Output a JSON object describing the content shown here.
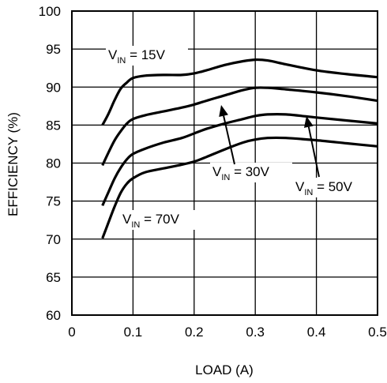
{
  "chart_data": {
    "type": "line",
    "xlabel": "LOAD (A)",
    "ylabel": "EFFICIENCY (%)",
    "xlim": [
      0,
      0.5
    ],
    "ylim": [
      60,
      100
    ],
    "grid": true,
    "x_ticks": [
      "0",
      "0.1",
      "0.2",
      "0.3",
      "0.4",
      "0.5"
    ],
    "y_ticks": [
      "60",
      "65",
      "70",
      "75",
      "80",
      "85",
      "90",
      "95",
      "100"
    ],
    "x_tick_values": [
      0,
      0.1,
      0.2,
      0.3,
      0.4,
      0.5
    ],
    "y_tick_values": [
      60,
      65,
      70,
      75,
      80,
      85,
      90,
      95,
      100
    ],
    "series": [
      {
        "name": "VIN = 15V",
        "x": [
          0.05,
          0.06,
          0.07,
          0.08,
          0.09,
          0.1,
          0.12,
          0.15,
          0.18,
          0.2,
          0.22,
          0.25,
          0.28,
          0.3,
          0.32,
          0.35,
          0.4,
          0.45,
          0.5
        ],
        "y": [
          85.0,
          86.5,
          88.3,
          89.8,
          90.6,
          91.2,
          91.5,
          91.6,
          91.6,
          91.8,
          92.2,
          92.9,
          93.4,
          93.6,
          93.5,
          93.0,
          92.2,
          91.7,
          91.3
        ]
      },
      {
        "name": "VIN = 30V",
        "x": [
          0.05,
          0.06,
          0.07,
          0.08,
          0.09,
          0.1,
          0.12,
          0.15,
          0.18,
          0.2,
          0.22,
          0.25,
          0.28,
          0.3,
          0.32,
          0.35,
          0.4,
          0.45,
          0.5
        ],
        "y": [
          79.7,
          81.4,
          83.0,
          84.2,
          85.2,
          85.8,
          86.3,
          86.8,
          87.3,
          87.7,
          88.2,
          88.9,
          89.6,
          89.9,
          89.9,
          89.7,
          89.3,
          88.8,
          88.2
        ]
      },
      {
        "name": "VIN = 50V",
        "x": [
          0.05,
          0.06,
          0.07,
          0.08,
          0.09,
          0.1,
          0.12,
          0.15,
          0.18,
          0.2,
          0.22,
          0.25,
          0.28,
          0.3,
          0.32,
          0.35,
          0.4,
          0.45,
          0.5
        ],
        "y": [
          74.4,
          76.2,
          78.0,
          79.4,
          80.5,
          81.2,
          81.9,
          82.7,
          83.3,
          83.9,
          84.5,
          85.2,
          85.8,
          86.2,
          86.4,
          86.4,
          86.0,
          85.6,
          85.2
        ]
      },
      {
        "name": "VIN = 70V",
        "x": [
          0.05,
          0.06,
          0.07,
          0.08,
          0.09,
          0.1,
          0.12,
          0.15,
          0.18,
          0.2,
          0.22,
          0.25,
          0.28,
          0.3,
          0.32,
          0.35,
          0.4,
          0.45,
          0.5
        ],
        "y": [
          70.1,
          72.2,
          74.3,
          76.1,
          77.3,
          78.0,
          78.8,
          79.3,
          79.8,
          80.2,
          80.8,
          81.8,
          82.7,
          83.1,
          83.3,
          83.3,
          83.0,
          82.6,
          82.2
        ]
      }
    ],
    "annotations": [
      {
        "main": "V",
        "sub": "IN",
        "rest": " = 15V"
      },
      {
        "main": "V",
        "sub": "IN",
        "rest": " = 30V"
      },
      {
        "main": "V",
        "sub": "IN",
        "rest": " = 50V"
      },
      {
        "main": "V",
        "sub": "IN",
        "rest": " = 70V"
      }
    ]
  }
}
